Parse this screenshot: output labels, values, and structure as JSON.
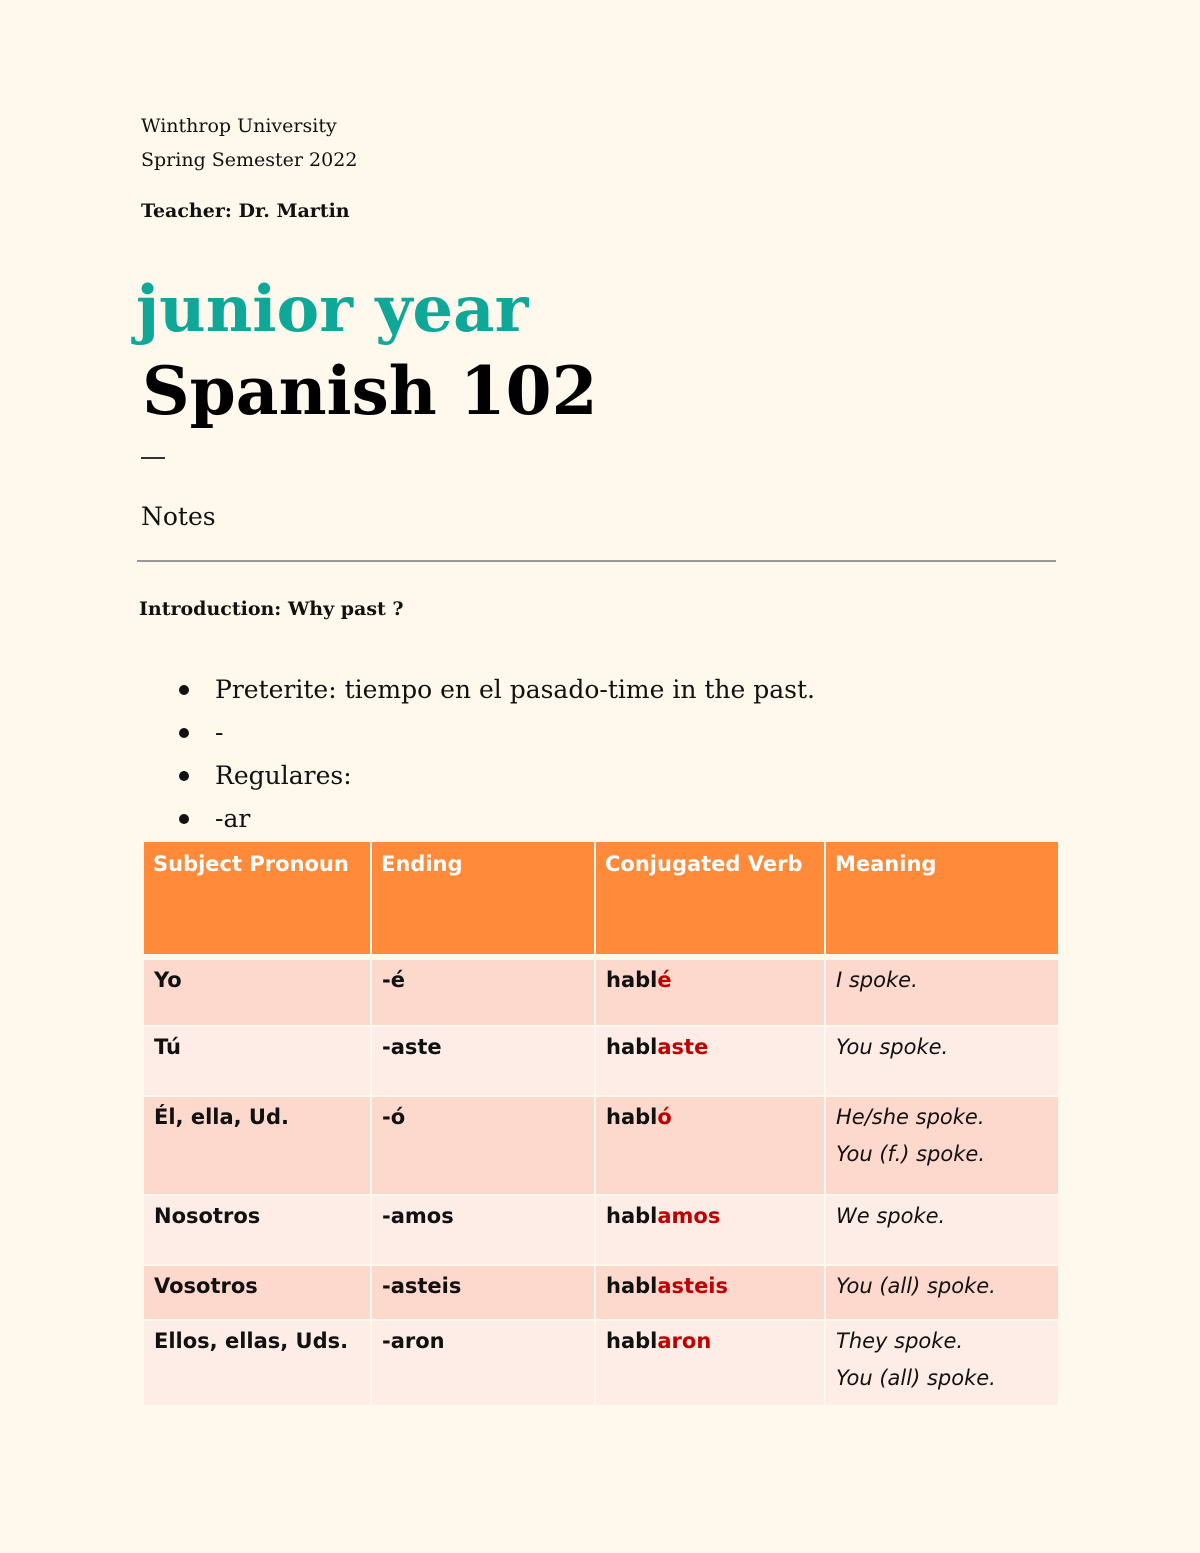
{
  "header": {
    "institution": "Winthrop University",
    "semester": "Spring Semester 2022",
    "teacher": "Teacher: Dr. Martin"
  },
  "subtitle": "junior year",
  "title": "Spanish 102",
  "section": "Notes",
  "intro": "Introduction: Why past ?",
  "bullets": [
    "Preterite: tiempo en el pasado-time in the past.",
    "-",
    "Regulares:",
    "-ar"
  ],
  "colors": {
    "accent": "#0fa898",
    "table_header": "#ff8a3a",
    "ending_highlight": "#c00000"
  },
  "table": {
    "headers": [
      "Subject Pronoun",
      "Ending",
      "Conjugated Verb",
      "Meaning"
    ],
    "rows": [
      {
        "pronoun": "Yo",
        "ending": "-é",
        "stem": "habl",
        "verb_ending": "é",
        "meaning": [
          "I spoke."
        ]
      },
      {
        "pronoun": "Tú",
        "ending": "-aste",
        "stem": "habl",
        "verb_ending": "aste",
        "meaning": [
          "You spoke."
        ]
      },
      {
        "pronoun": "Él, ella, Ud.",
        "ending": "-ó",
        "stem": "habl",
        "verb_ending": "ó",
        "meaning": [
          "He/she spoke.",
          "You (f.) spoke."
        ]
      },
      {
        "pronoun": "Nosotros",
        "ending": "-amos",
        "stem": "habl",
        "verb_ending": "amos",
        "meaning": [
          "We spoke."
        ]
      },
      {
        "pronoun": "Vosotros",
        "ending": "-asteis",
        "stem": "habl",
        "verb_ending": "asteis",
        "meaning": [
          "You (all) spoke."
        ]
      },
      {
        "pronoun": "Ellos, ellas,  Uds.",
        "ending": "-aron",
        "stem": "habl",
        "verb_ending": "aron",
        "meaning": [
          "They spoke.",
          "You (all) spoke."
        ]
      }
    ]
  }
}
